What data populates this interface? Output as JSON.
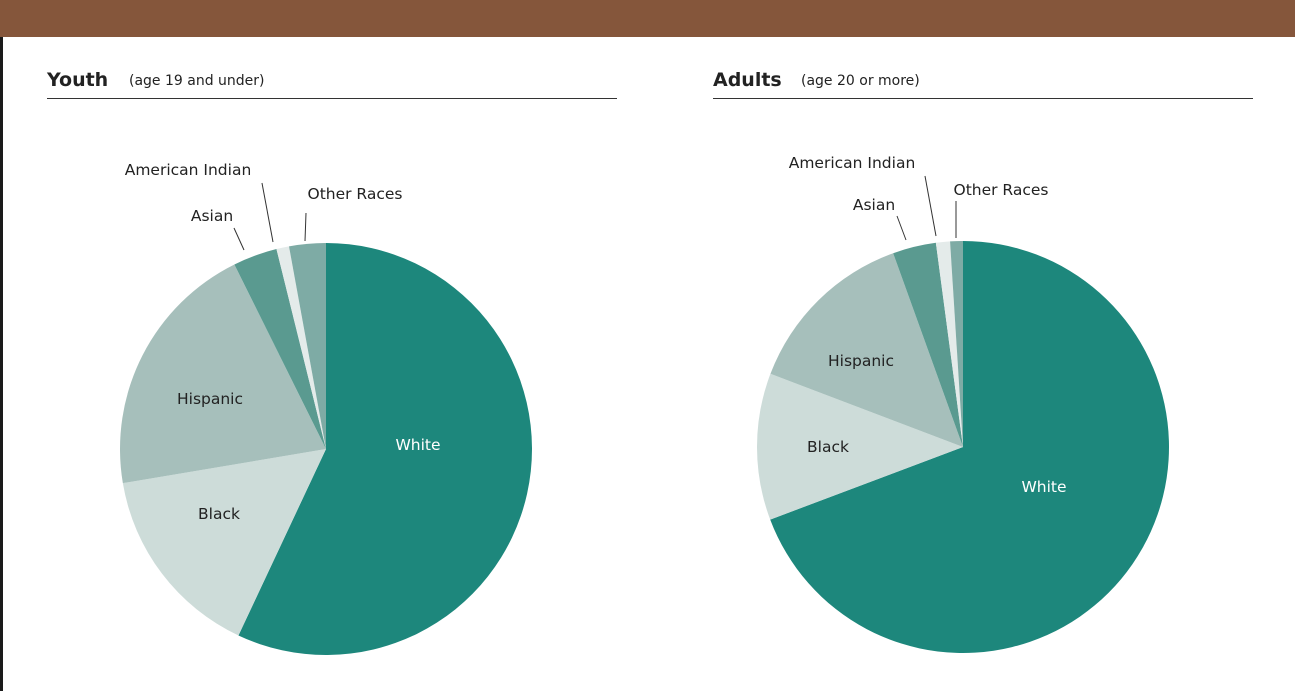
{
  "charts": [
    {
      "title": "Youth",
      "subtitle": "(age 19 and under)"
    },
    {
      "title": "Adults",
      "subtitle": "(age 20 or more)"
    }
  ],
  "colors": {
    "header_bar": "#85563b",
    "White": "#1d877c",
    "Black": "#cddcd9",
    "Hispanic": "#a6bfbb",
    "Asian": "#5a9a90",
    "American Indian": "#e4ebea",
    "Other Races": "#7eaba5"
  },
  "chart_data": [
    {
      "type": "pie",
      "title": "Youth",
      "subtitle": "(age 19 and under)",
      "categories": [
        "White",
        "Black",
        "Hispanic",
        "Asian",
        "American Indian",
        "Other Races"
      ],
      "values": [
        57.5,
        15.5,
        20.5,
        3.5,
        1.0,
        2.9
      ],
      "label_placement": {
        "White": "inside",
        "Black": "inside",
        "Hispanic": "inside",
        "Asian": "outside",
        "American Indian": "outside",
        "Other Races": "outside"
      }
    },
    {
      "type": "pie",
      "title": "Adults",
      "subtitle": "(age 20 or more)",
      "categories": [
        "White",
        "Black",
        "Hispanic",
        "Asian",
        "American Indian",
        "Other Races"
      ],
      "values": [
        69.2,
        11.5,
        13.7,
        3.4,
        1.1,
        1.0
      ],
      "label_placement": {
        "White": "inside",
        "Black": "inside",
        "Hispanic": "inside",
        "Asian": "outside",
        "American Indian": "outside",
        "Other Races": "outside"
      }
    }
  ]
}
